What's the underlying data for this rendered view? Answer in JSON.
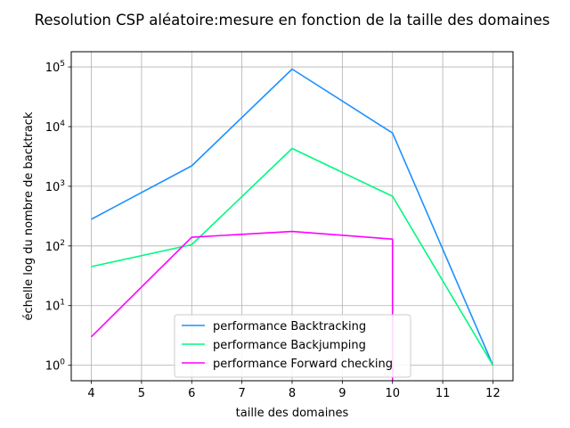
{
  "chart_data": {
    "type": "line",
    "title": "Resolution CSP aléatoire:mesure en fonction de la taille des domaines",
    "xlabel": "taille des domaines",
    "ylabel": "échelle log du nombre de backtrack",
    "xlim": [
      3.6,
      12.4
    ],
    "ylim": [
      0.55,
      180000
    ],
    "yscale": "log",
    "x_ticks": [
      4,
      5,
      6,
      7,
      8,
      9,
      10,
      11,
      12
    ],
    "y_ticks": [
      {
        "value": 1,
        "base": "10",
        "exp": "0"
      },
      {
        "value": 10,
        "base": "10",
        "exp": "1"
      },
      {
        "value": 100,
        "base": "10",
        "exp": "2"
      },
      {
        "value": 1000,
        "base": "10",
        "exp": "3"
      },
      {
        "value": 10000,
        "base": "10",
        "exp": "4"
      },
      {
        "value": 100000,
        "base": "10",
        "exp": "5"
      }
    ],
    "grid": true,
    "legend_position": "lower-center",
    "series": [
      {
        "name": "performance Backtracking",
        "color": "#1e90ff",
        "x": [
          4,
          6,
          8,
          10,
          12
        ],
        "y": [
          280,
          2200,
          92000,
          7800,
          1
        ]
      },
      {
        "name": "performance Backjumping",
        "color": "#00fa7f",
        "x": [
          4,
          6,
          8,
          10,
          12
        ],
        "y": [
          45,
          105,
          4300,
          680,
          1
        ]
      },
      {
        "name": "performance Forward checking",
        "color": "#ff00ff",
        "x": [
          4,
          6,
          8,
          10,
          10
        ],
        "y": [
          3,
          140,
          175,
          130,
          0.5
        ]
      }
    ]
  }
}
